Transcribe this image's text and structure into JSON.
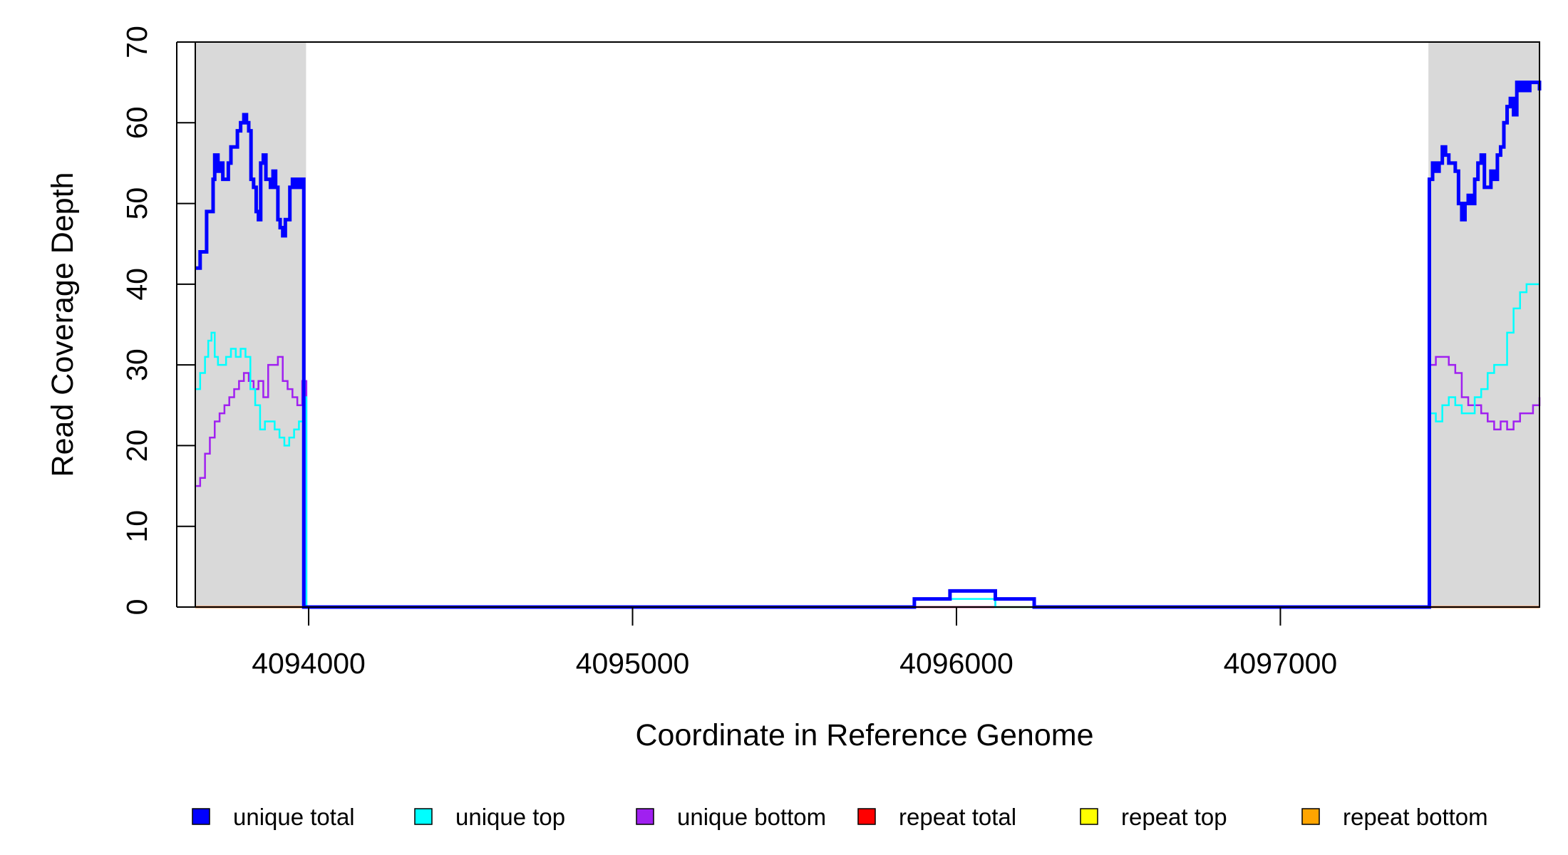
{
  "chart_data": {
    "type": "line",
    "title": "",
    "xlabel": "Coordinate in Reference Genome",
    "ylabel": "Read Coverage Depth",
    "xlim": [
      4093650,
      4097800
    ],
    "ylim": [
      0,
      70
    ],
    "xticks": [
      4094000,
      4095000,
      4096000,
      4097000
    ],
    "xtick_labels": [
      "4094000",
      "4095000",
      "4096000",
      "4097000"
    ],
    "yticks": [
      0,
      10,
      20,
      30,
      40,
      50,
      60,
      70
    ],
    "ytick_labels": [
      "0",
      "10",
      "20",
      "30",
      "40",
      "50",
      "60",
      "70"
    ],
    "shaded_regions": [
      [
        4093650,
        4093992
      ],
      [
        4097457,
        4097800
      ]
    ],
    "shade_color": "#d9d9d9",
    "legend_position": "bottom",
    "legend": [
      {
        "name": "unique total",
        "color": "#0000ff"
      },
      {
        "name": "unique top",
        "color": "#00ffff"
      },
      {
        "name": "unique bottom",
        "color": "#a020f0"
      },
      {
        "name": "repeat total",
        "color": "#ff0000"
      },
      {
        "name": "repeat top",
        "color": "#ffff00"
      },
      {
        "name": "repeat bottom",
        "color": "#ffa500"
      }
    ],
    "series": [
      {
        "name": "unique total",
        "color": "#0000ff",
        "x": [
          4093650,
          4093665,
          4093685,
          4093705,
          4093710,
          4093720,
          4093728,
          4093735,
          4093742,
          4093752,
          4093760,
          4093770,
          4093780,
          4093790,
          4093800,
          4093808,
          4093815,
          4093822,
          4093830,
          4093838,
          4093845,
          4093852,
          4093860,
          4093868,
          4093876,
          4093882,
          4093890,
          4093898,
          4093905,
          4093912,
          4093920,
          4093928,
          4093935,
          4093942,
          4093950,
          4093958,
          4093964,
          4093970,
          4093978,
          4093985,
          4093990,
          4093993,
          4094000,
          4095870,
          4095980,
          4096120,
          4096240,
          4097455,
          4097460,
          4097470,
          4097480,
          4097490,
          4097500,
          4097510,
          4097520,
          4097530,
          4097540,
          4097550,
          4097560,
          4097570,
          4097580,
          4097590,
          4097600,
          4097610,
          4097620,
          4097630,
          4097640,
          4097650,
          4097660,
          4097670,
          4097680,
          4097690,
          4097700,
          4097710,
          4097720,
          4097730,
          4097740,
          4097750,
          4097760,
          4097770,
          4097780,
          4097790,
          4097800
        ],
        "y": [
          42,
          44,
          49,
          53,
          56,
          54,
          55,
          53,
          53,
          55,
          57,
          57,
          59,
          60,
          61,
          60,
          59,
          53,
          52,
          49,
          48,
          55,
          56,
          53,
          53,
          52,
          54,
          52,
          48,
          47,
          46,
          48,
          48,
          52,
          53,
          52,
          53,
          52,
          53,
          0,
          0,
          0,
          0,
          1,
          2,
          1,
          0,
          0,
          53,
          55,
          54,
          55,
          57,
          56,
          55,
          55,
          54,
          50,
          48,
          50,
          51,
          50,
          53,
          55,
          56,
          52,
          52,
          54,
          53,
          56,
          57,
          60,
          62,
          63,
          61,
          65,
          64,
          65,
          64,
          65,
          65,
          65,
          64
        ],
        "stroke_width": 5
      },
      {
        "name": "unique top",
        "color": "#00ffff",
        "x": [
          4093650,
          4093665,
          4093680,
          4093690,
          4093700,
          4093710,
          4093720,
          4093730,
          4093745,
          4093760,
          4093775,
          4093790,
          4093805,
          4093820,
          4093835,
          4093850,
          4093865,
          4093880,
          4093895,
          4093910,
          4093925,
          4093940,
          4093955,
          4093970,
          4093985,
          4093993,
          4094000,
          4095870,
          4096120,
          4096240,
          4097455,
          4097460,
          4097480,
          4097500,
          4097520,
          4097540,
          4097560,
          4097580,
          4097600,
          4097620,
          4097640,
          4097660,
          4097680,
          4097700,
          4097720,
          4097740,
          4097760,
          4097780,
          4097800
        ],
        "y": [
          27,
          29,
          31,
          33,
          34,
          31,
          30,
          30,
          31,
          32,
          31,
          32,
          31,
          27,
          25,
          22,
          23,
          23,
          22,
          21,
          20,
          21,
          22,
          23,
          26,
          0,
          0,
          1,
          0,
          0,
          0,
          24,
          23,
          25,
          26,
          25,
          24,
          24,
          26,
          27,
          29,
          30,
          30,
          34,
          37,
          39,
          40,
          40,
          40
        ],
        "stroke_width": 2.5
      },
      {
        "name": "unique bottom",
        "color": "#a020f0",
        "x": [
          4093650,
          4093665,
          4093680,
          4093695,
          4093710,
          4093725,
          4093740,
          4093755,
          4093770,
          4093785,
          4093800,
          4093815,
          4093830,
          4093845,
          4093860,
          4093875,
          4093890,
          4093905,
          4093920,
          4093935,
          4093950,
          4093965,
          4093980,
          4093993,
          4094000,
          4096120,
          4096240,
          4097455,
          4097460,
          4097480,
          4097500,
          4097520,
          4097540,
          4097560,
          4097580,
          4097600,
          4097620,
          4097640,
          4097660,
          4097680,
          4097700,
          4097720,
          4097740,
          4097760,
          4097780,
          4097800
        ],
        "y": [
          15,
          16,
          19,
          21,
          23,
          24,
          25,
          26,
          27,
          28,
          29,
          28,
          27,
          28,
          26,
          30,
          30,
          31,
          28,
          27,
          26,
          25,
          28,
          0,
          0,
          1,
          0,
          0,
          30,
          31,
          31,
          30,
          29,
          26,
          25,
          25,
          24,
          23,
          22,
          23,
          22,
          23,
          24,
          24,
          25,
          26
        ],
        "stroke_width": 2.5
      },
      {
        "name": "repeat total",
        "color": "#ff0000",
        "x": [
          4093650,
          4097800
        ],
        "y": [
          0,
          0
        ],
        "stroke_width": 2.5
      },
      {
        "name": "repeat top",
        "color": "#ffff00",
        "x": [
          4093650,
          4097800
        ],
        "y": [
          0,
          0
        ],
        "stroke_width": 2.5
      },
      {
        "name": "repeat bottom",
        "color": "#ffa500",
        "x": [
          4093650,
          4097800
        ],
        "y": [
          0,
          0
        ],
        "stroke_width": 2.5
      }
    ]
  }
}
